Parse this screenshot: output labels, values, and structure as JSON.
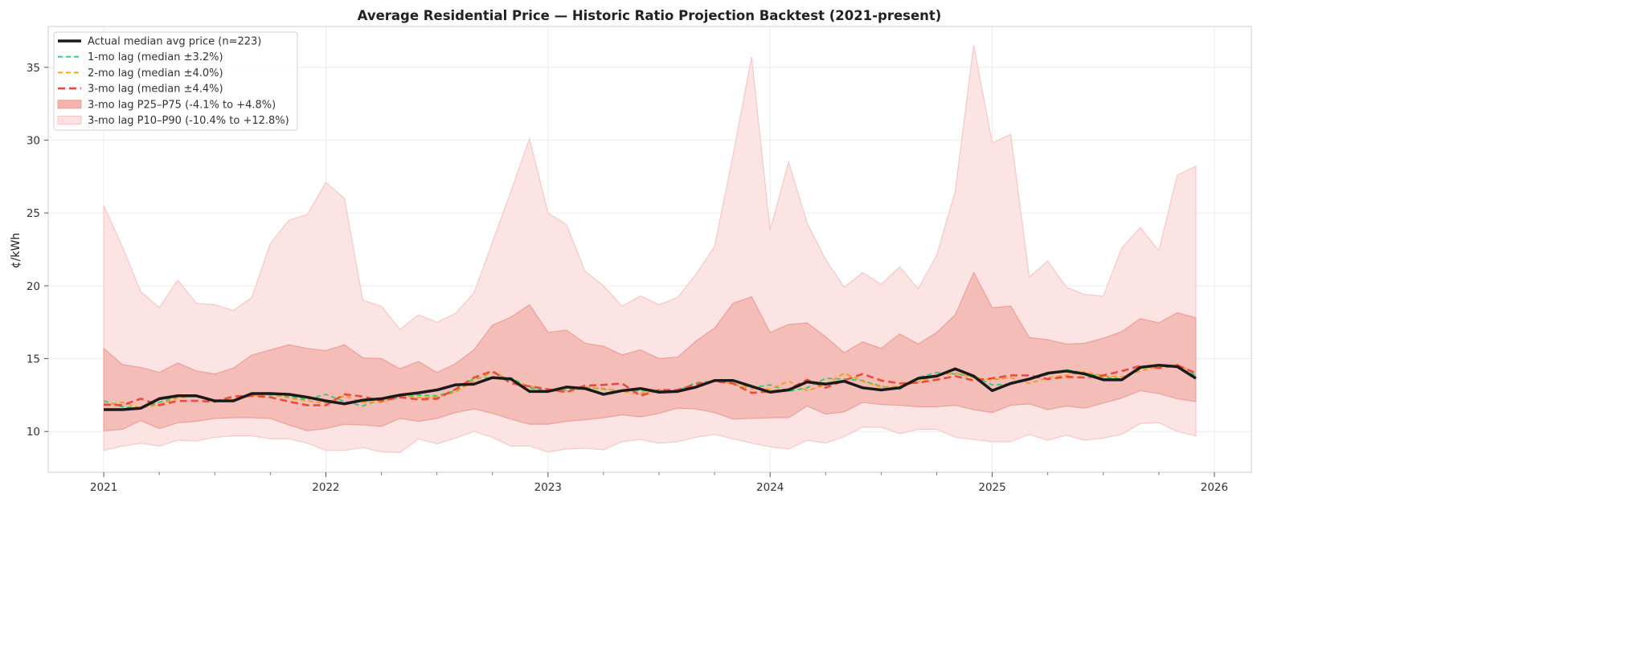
{
  "chart_data": {
    "type": "line",
    "title": "Average Residential Price — Historic Ratio Projection Backtest (2021-present)",
    "xlabel": "",
    "ylabel": "¢/kWh",
    "ylim": [
      7.2,
      37.8
    ],
    "xlim": [
      "2020-10",
      "2026-03"
    ],
    "grid": true,
    "legend_position": "top-left",
    "x_ticks": [
      "2021",
      "2022",
      "2023",
      "2024",
      "2025",
      "2026"
    ],
    "y_ticks": [
      10,
      15,
      20,
      25,
      30,
      35
    ],
    "x": [
      "2021-01",
      "2021-02",
      "2021-03",
      "2021-04",
      "2021-05",
      "2021-06",
      "2021-07",
      "2021-08",
      "2021-09",
      "2021-10",
      "2021-11",
      "2021-12",
      "2022-01",
      "2022-02",
      "2022-03",
      "2022-04",
      "2022-05",
      "2022-06",
      "2022-07",
      "2022-08",
      "2022-09",
      "2022-10",
      "2022-11",
      "2022-12",
      "2023-01",
      "2023-02",
      "2023-03",
      "2023-04",
      "2023-05",
      "2023-06",
      "2023-07",
      "2023-08",
      "2023-09",
      "2023-10",
      "2023-11",
      "2023-12",
      "2024-01",
      "2024-02",
      "2024-03",
      "2024-04",
      "2024-05",
      "2024-06",
      "2024-07",
      "2024-08",
      "2024-09",
      "2024-10",
      "2024-11",
      "2024-12",
      "2025-01",
      "2025-02",
      "2025-03",
      "2025-04",
      "2025-05",
      "2025-06",
      "2025-07",
      "2025-08",
      "2025-09",
      "2025-10",
      "2025-11",
      "2025-12"
    ],
    "bands": [
      {
        "name": "3-mo lag P10–P90  (-10.4% to +12.8%)",
        "color": "#fbe4e3",
        "edge": "#f6c9c6",
        "lower": [
          8.7,
          9.0,
          9.2,
          9.0,
          9.4,
          9.35,
          9.6,
          9.7,
          9.7,
          9.5,
          9.5,
          9.2,
          8.7,
          8.7,
          8.9,
          8.6,
          8.55,
          9.5,
          9.15,
          9.55,
          10.0,
          9.6,
          9.0,
          9.0,
          8.6,
          8.8,
          8.85,
          8.75,
          9.3,
          9.45,
          9.2,
          9.3,
          9.6,
          9.8,
          9.5,
          9.2,
          8.95,
          8.8,
          9.4,
          9.2,
          9.65,
          10.3,
          10.3,
          9.85,
          10.15,
          10.15,
          9.6,
          9.45,
          9.3,
          9.3,
          9.8,
          9.4,
          9.75,
          9.4,
          9.55,
          9.8,
          10.55,
          10.6,
          10.0,
          9.7
        ],
        "upper": [
          25.5,
          22.7,
          19.6,
          18.5,
          20.4,
          18.8,
          18.7,
          18.3,
          19.2,
          22.9,
          24.5,
          24.9,
          27.1,
          26.0,
          19.0,
          18.6,
          17.0,
          18.0,
          17.5,
          18.1,
          19.5,
          23.0,
          26.5,
          30.1,
          25.0,
          24.2,
          21.0,
          20.0,
          18.6,
          19.3,
          18.7,
          19.2,
          20.8,
          22.7,
          29.0,
          35.7,
          23.8,
          28.5,
          24.3,
          21.8,
          19.9,
          20.9,
          20.1,
          21.3,
          19.8,
          22.1,
          26.5,
          36.5,
          29.8,
          30.4,
          20.6,
          21.7,
          19.9,
          19.4,
          19.3,
          22.6,
          24.0,
          22.4,
          27.6,
          28.2
        ]
      },
      {
        "name": "3-mo lag P25–P75  (-4.1% to +4.8%)",
        "color": "#f4bdb8",
        "edge": "#ee9f98",
        "lower": [
          10.05,
          10.15,
          10.75,
          10.2,
          10.6,
          10.7,
          10.9,
          10.95,
          10.95,
          10.9,
          10.45,
          10.05,
          10.2,
          10.5,
          10.45,
          10.35,
          10.9,
          10.7,
          10.9,
          11.3,
          11.55,
          11.25,
          10.85,
          10.5,
          10.5,
          10.7,
          10.8,
          10.95,
          11.15,
          11.0,
          11.25,
          11.6,
          11.55,
          11.3,
          10.85,
          10.9,
          10.95,
          10.95,
          11.75,
          11.2,
          11.35,
          12.0,
          11.85,
          11.8,
          11.7,
          11.7,
          11.8,
          11.5,
          11.3,
          11.8,
          11.9,
          11.5,
          11.75,
          11.6,
          11.95,
          12.3,
          12.8,
          12.6,
          12.25,
          12.05
        ],
        "upper": [
          15.7,
          14.6,
          14.4,
          14.05,
          14.7,
          14.15,
          13.95,
          14.35,
          15.25,
          15.6,
          15.95,
          15.7,
          15.55,
          15.95,
          15.05,
          15.0,
          14.3,
          14.8,
          14.05,
          14.65,
          15.6,
          17.3,
          17.85,
          18.7,
          16.8,
          16.95,
          16.05,
          15.85,
          15.25,
          15.6,
          15.0,
          15.1,
          16.2,
          17.1,
          18.8,
          19.25,
          16.8,
          17.35,
          17.45,
          16.5,
          15.4,
          16.15,
          15.7,
          16.7,
          16.0,
          16.8,
          18.0,
          20.9,
          18.5,
          18.6,
          16.45,
          16.3,
          16.0,
          16.05,
          16.4,
          16.85,
          17.75,
          17.45,
          18.15,
          17.8
        ]
      }
    ],
    "series": [
      {
        "name": "1-mo lag  (median ±3.2%)",
        "color": "#2ecc71",
        "dash": "6,4",
        "width": 1.8,
        "values": [
          12.1,
          11.7,
          11.6,
          12.0,
          12.4,
          12.4,
          12.1,
          12.15,
          12.55,
          12.5,
          12.4,
          12.2,
          12.55,
          12.05,
          11.75,
          12.25,
          12.3,
          12.5,
          12.45,
          12.8,
          13.65,
          13.7,
          13.7,
          13.0,
          12.75,
          12.85,
          13.05,
          12.9,
          12.8,
          12.8,
          12.8,
          12.8,
          13.35,
          13.45,
          13.5,
          13.0,
          13.2,
          12.75,
          13.0,
          13.65,
          13.6,
          13.5,
          13.1,
          12.9,
          13.7,
          14.05,
          13.95,
          13.8,
          13.2,
          13.25,
          13.65,
          13.9,
          14.25,
          14.0,
          13.75,
          13.6,
          14.3,
          14.6,
          14.4,
          13.85
        ]
      },
      {
        "name": "2-mo lag  (median ±4.0%)",
        "color": "#f39c12",
        "dash": "6,4",
        "width": 1.8,
        "values": [
          11.8,
          12.0,
          11.6,
          11.85,
          12.3,
          12.45,
          12.1,
          12.2,
          12.45,
          12.55,
          12.3,
          12.1,
          11.95,
          12.45,
          12.0,
          12.0,
          12.45,
          12.35,
          12.35,
          12.7,
          13.5,
          14.05,
          13.55,
          13.1,
          12.9,
          12.7,
          13.0,
          12.95,
          12.75,
          12.6,
          12.85,
          12.8,
          13.1,
          13.5,
          13.25,
          12.95,
          12.9,
          13.45,
          12.8,
          13.2,
          14.0,
          13.45,
          13.05,
          13.1,
          13.4,
          13.85,
          14.0,
          13.7,
          13.55,
          13.7,
          13.3,
          13.7,
          13.85,
          14.1,
          13.8,
          13.75,
          14.15,
          14.45,
          14.6,
          14.0
        ]
      },
      {
        "name": "3-mo lag  (median ±4.4%)",
        "color": "#e74c3c",
        "dash": "9,5",
        "width": 2.6,
        "values": [
          11.85,
          11.8,
          12.25,
          11.8,
          12.1,
          12.1,
          12.05,
          12.4,
          12.45,
          12.35,
          12.05,
          11.8,
          11.8,
          12.55,
          12.4,
          12.1,
          12.35,
          12.2,
          12.25,
          12.9,
          13.7,
          14.15,
          13.3,
          13.1,
          12.9,
          12.7,
          13.15,
          13.2,
          13.3,
          12.45,
          12.85,
          12.85,
          13.25,
          13.45,
          13.3,
          12.65,
          12.75,
          12.9,
          13.55,
          13.0,
          13.5,
          13.95,
          13.5,
          13.3,
          13.35,
          13.55,
          13.8,
          13.5,
          13.65,
          13.85,
          13.85,
          13.6,
          13.75,
          13.7,
          13.85,
          14.15,
          14.5,
          14.35,
          14.55,
          14.0
        ]
      },
      {
        "name": "Actual median avg price  (n=223)",
        "color": "#1a1a1a",
        "dash": "",
        "width": 3.5,
        "values": [
          11.5,
          11.5,
          11.6,
          12.25,
          12.45,
          12.45,
          12.1,
          12.1,
          12.6,
          12.6,
          12.55,
          12.35,
          12.1,
          11.9,
          12.15,
          12.25,
          12.5,
          12.65,
          12.85,
          13.2,
          13.25,
          13.7,
          13.6,
          12.75,
          12.75,
          13.05,
          12.95,
          12.55,
          12.8,
          12.95,
          12.7,
          12.75,
          13.05,
          13.5,
          13.5,
          13.1,
          12.7,
          12.85,
          13.4,
          13.25,
          13.45,
          13.0,
          12.85,
          13.0,
          13.65,
          13.8,
          14.3,
          13.8,
          12.8,
          13.3,
          13.6,
          14.0,
          14.15,
          13.95,
          13.55,
          13.55,
          14.4,
          14.55,
          14.45,
          13.65
        ]
      }
    ],
    "legend": [
      {
        "label": "Actual median avg price  (n=223)",
        "kind": "line",
        "color": "#1a1a1a",
        "dash": "",
        "width": 3.5
      },
      {
        "label": "1-mo lag  (median ±3.2%)",
        "kind": "line",
        "color": "#2ecc71",
        "dash": "6,4",
        "width": 1.8
      },
      {
        "label": "2-mo lag  (median ±4.0%)",
        "kind": "line",
        "color": "#f39c12",
        "dash": "6,4",
        "width": 1.8
      },
      {
        "label": "3-mo lag  (median ±4.4%)",
        "kind": "line",
        "color": "#e74c3c",
        "dash": "9,5",
        "width": 2.6
      },
      {
        "label": "3-mo lag P25–P75  (-4.1% to +4.8%)",
        "kind": "patch",
        "color": "#f4b3ad",
        "edge": "#ee9f98"
      },
      {
        "label": "3-mo lag P10–P90  (-10.4% to +12.8%)",
        "kind": "patch",
        "color": "#fbe1df",
        "edge": "#f6c9c6"
      }
    ]
  }
}
